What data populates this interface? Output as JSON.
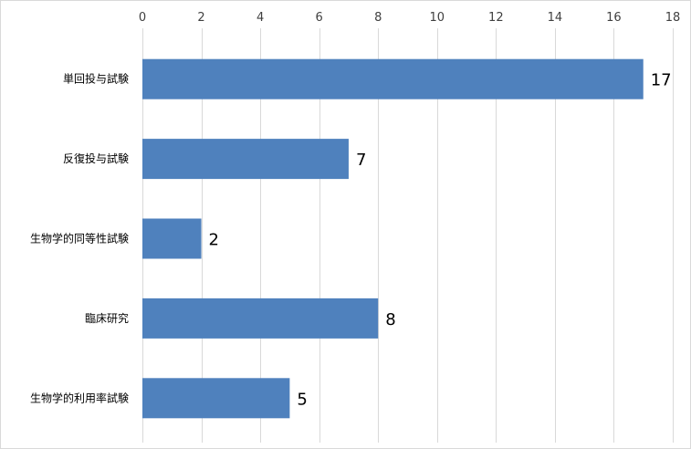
{
  "chart_data": {
    "type": "bar",
    "orientation": "horizontal",
    "categories": [
      "単回投与試験",
      "反復投与試験",
      "生物学的同等性試験",
      "臨床研究",
      "生物学的利用率試験"
    ],
    "values": [
      17,
      7,
      2,
      8,
      5
    ],
    "xlim": [
      0,
      18
    ],
    "xticks": [
      0,
      2,
      4,
      6,
      8,
      10,
      12,
      14,
      16,
      18
    ],
    "axis_position": "top",
    "grid": true,
    "data_labels": true,
    "legend": "none",
    "bar_color": "#4f81bd",
    "grid_color": "#d9d9d9"
  }
}
